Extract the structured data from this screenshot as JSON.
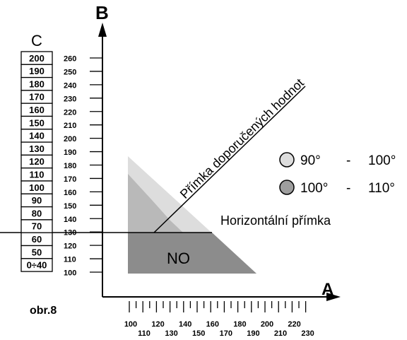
{
  "axes": {
    "b_label": "B",
    "a_label": "A",
    "c_label": "C"
  },
  "c_scale": [
    "200",
    "190",
    "180",
    "170",
    "160",
    "150",
    "140",
    "130",
    "120",
    "110",
    "100",
    "90",
    "80",
    "70",
    "60",
    "50",
    "0÷40"
  ],
  "b_scale": [
    "260",
    "250",
    "240",
    "230",
    "220",
    "210",
    "200",
    "190",
    "180",
    "170",
    "160",
    "150",
    "140",
    "130",
    "120",
    "110",
    "100"
  ],
  "a_scale_top": [
    "100",
    "120",
    "140",
    "160",
    "180",
    "200",
    "220"
  ],
  "a_scale_bottom": [
    "110",
    "130",
    "150",
    "170",
    "190",
    "210",
    "230"
  ],
  "recommended_line_label": "Přímka doporučených hodnot",
  "horizontal_line_label": "Horizontální přímka",
  "no_zone_label": "NO",
  "figure_label": "obr.8",
  "legend": [
    {
      "from": "90°",
      "sep": "-",
      "to": "100°",
      "color": "#dddddd"
    },
    {
      "from": "100°",
      "sep": "-",
      "to": "110°",
      "color": "#9e9e9e"
    }
  ],
  "zone_colors": {
    "light": "#dddddd",
    "medium": "#b9b9b9",
    "dark": "#8c8c8c"
  }
}
